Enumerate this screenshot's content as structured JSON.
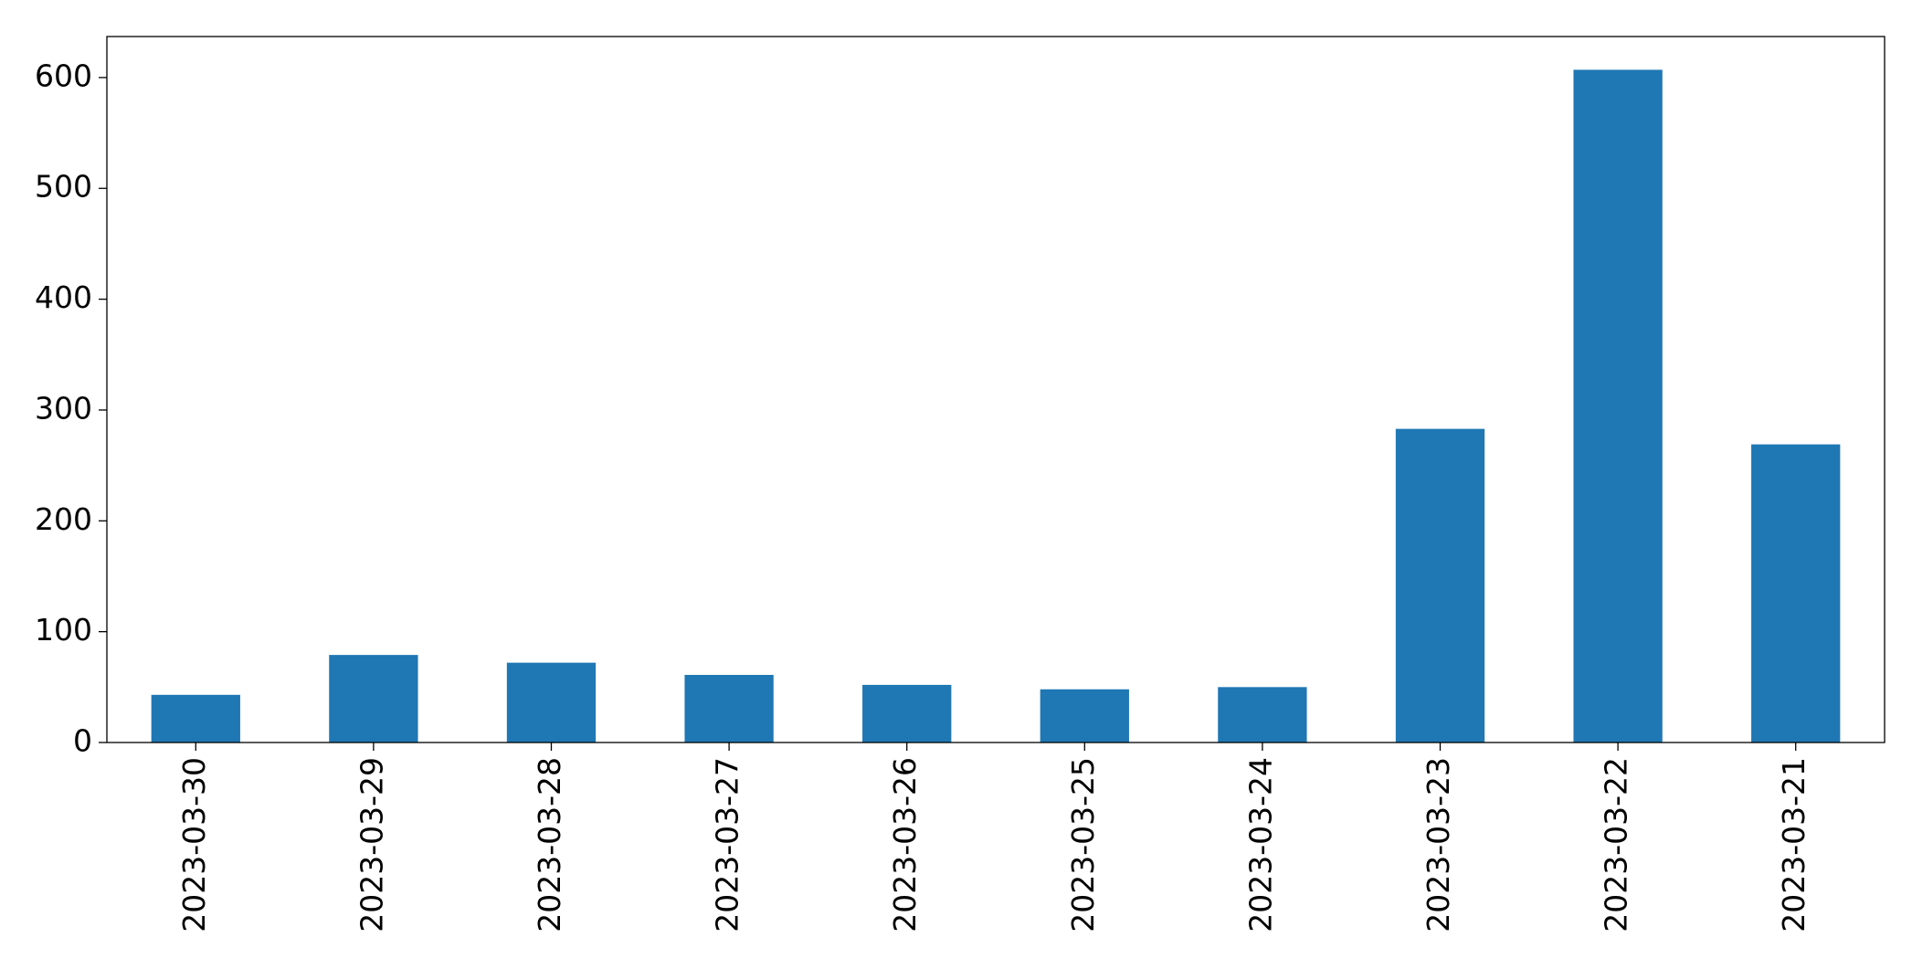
{
  "chart_data": {
    "type": "bar",
    "categories": [
      "2023-03-30",
      "2023-03-29",
      "2023-03-28",
      "2023-03-27",
      "2023-03-26",
      "2023-03-25",
      "2023-03-24",
      "2023-03-23",
      "2023-03-22",
      "2023-03-21"
    ],
    "values": [
      43,
      79,
      72,
      61,
      52,
      48,
      50,
      283,
      607,
      269
    ],
    "color": "#1f77b4",
    "ylim": [
      0,
      637
    ],
    "yticks": [
      0,
      100,
      200,
      300,
      400,
      500,
      600
    ],
    "grid": false
  }
}
